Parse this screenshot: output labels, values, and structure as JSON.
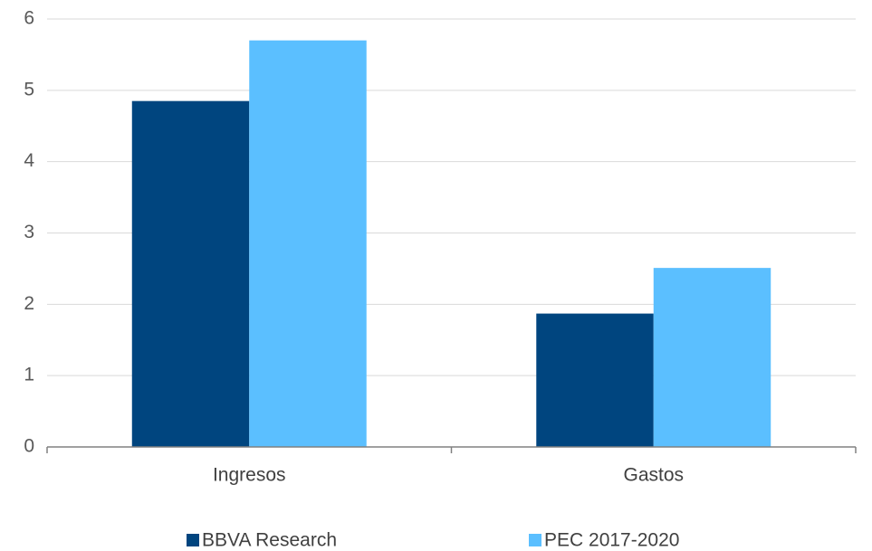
{
  "chart_data": {
    "type": "bar",
    "categories": [
      "Ingresos",
      "Gastos"
    ],
    "series": [
      {
        "name": "BBVA Research",
        "color": "#00457f",
        "values": [
          4.85,
          1.87
        ]
      },
      {
        "name": "PEC 2017-2020",
        "color": "#5bbfff",
        "values": [
          5.7,
          2.51
        ]
      }
    ],
    "ylim": [
      0,
      6
    ],
    "yticks": [
      0,
      1,
      2,
      3,
      4,
      5,
      6
    ],
    "grid": true,
    "legend": "bottom"
  }
}
